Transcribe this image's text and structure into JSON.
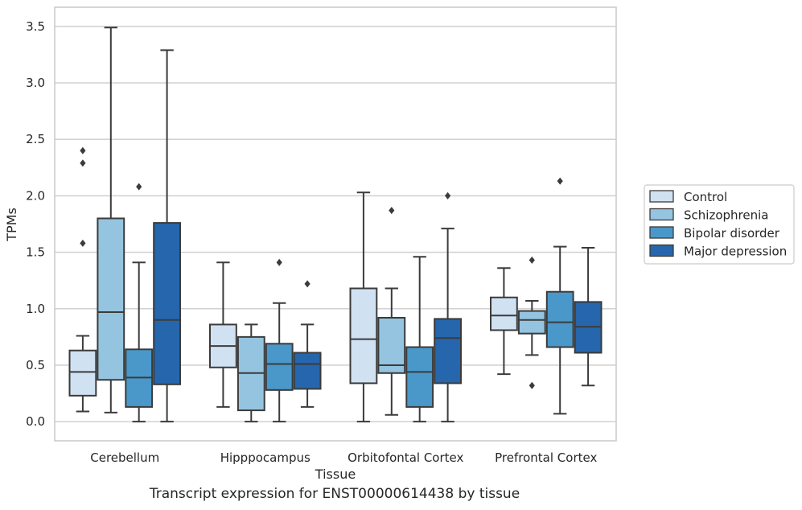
{
  "caption": "Transcript expression for ENST00000614438 by tissue",
  "chart_data": {
    "type": "boxplot",
    "xlabel": "Tissue",
    "ylabel": "TPMs",
    "ylim": [
      -0.17,
      3.67
    ],
    "yticks": [
      0.0,
      0.5,
      1.0,
      1.5,
      2.0,
      2.5,
      3.0,
      3.5
    ],
    "ytick_labels": [
      "0.0",
      "0.5",
      "1.0",
      "1.5",
      "2.0",
      "2.5",
      "3.0",
      "3.5"
    ],
    "grid": "horizontal",
    "legend_position": "right",
    "categories": [
      "Cerebellum",
      "Hipppocampus",
      "Orbitofontal Cortex",
      "Prefrontal Cortex"
    ],
    "series": [
      {
        "name": "Control",
        "color": "#d0e1f2",
        "boxes": [
          {
            "whisker_low": 0.09,
            "q1": 0.23,
            "median": 0.44,
            "q3": 0.63,
            "whisker_high": 0.76,
            "outliers": [
              1.58,
              2.29,
              2.4
            ]
          },
          {
            "whisker_low": 0.13,
            "q1": 0.48,
            "median": 0.67,
            "q3": 0.86,
            "whisker_high": 1.41,
            "outliers": []
          },
          {
            "whisker_low": 0.0,
            "q1": 0.34,
            "median": 0.73,
            "q3": 1.18,
            "whisker_high": 2.03,
            "outliers": []
          },
          {
            "whisker_low": 0.42,
            "q1": 0.81,
            "median": 0.94,
            "q3": 1.1,
            "whisker_high": 1.36,
            "outliers": []
          }
        ]
      },
      {
        "name": "Schizophrenia",
        "color": "#94c4df",
        "boxes": [
          {
            "whisker_low": 0.08,
            "q1": 0.37,
            "median": 0.97,
            "q3": 1.8,
            "whisker_high": 3.49,
            "outliers": []
          },
          {
            "whisker_low": 0.0,
            "q1": 0.1,
            "median": 0.43,
            "q3": 0.75,
            "whisker_high": 0.86,
            "outliers": []
          },
          {
            "whisker_low": 0.06,
            "q1": 0.43,
            "median": 0.5,
            "q3": 0.92,
            "whisker_high": 1.18,
            "outliers": [
              1.87
            ]
          },
          {
            "whisker_low": 0.59,
            "q1": 0.78,
            "median": 0.9,
            "q3": 0.98,
            "whisker_high": 1.07,
            "outliers": [
              0.32,
              1.43
            ]
          }
        ]
      },
      {
        "name": "Bipolar disorder",
        "color": "#4a98c9",
        "boxes": [
          {
            "whisker_low": 0.0,
            "q1": 0.13,
            "median": 0.39,
            "q3": 0.64,
            "whisker_high": 1.41,
            "outliers": [
              2.08
            ]
          },
          {
            "whisker_low": 0.0,
            "q1": 0.28,
            "median": 0.51,
            "q3": 0.69,
            "whisker_high": 1.05,
            "outliers": [
              1.41
            ]
          },
          {
            "whisker_low": 0.0,
            "q1": 0.13,
            "median": 0.44,
            "q3": 0.66,
            "whisker_high": 1.46,
            "outliers": []
          },
          {
            "whisker_low": 0.07,
            "q1": 0.66,
            "median": 0.88,
            "q3": 1.15,
            "whisker_high": 1.55,
            "outliers": [
              2.13
            ]
          }
        ]
      },
      {
        "name": "Major depression",
        "color": "#2666ad",
        "boxes": [
          {
            "whisker_low": 0.0,
            "q1": 0.33,
            "median": 0.9,
            "q3": 1.76,
            "whisker_high": 3.29,
            "outliers": []
          },
          {
            "whisker_low": 0.13,
            "q1": 0.29,
            "median": 0.51,
            "q3": 0.61,
            "whisker_high": 0.86,
            "outliers": [
              1.22
            ]
          },
          {
            "whisker_low": 0.0,
            "q1": 0.34,
            "median": 0.74,
            "q3": 0.91,
            "whisker_high": 1.71,
            "outliers": [
              2.0
            ]
          },
          {
            "whisker_low": 0.32,
            "q1": 0.61,
            "median": 0.84,
            "q3": 1.06,
            "whisker_high": 1.54,
            "outliers": []
          }
        ]
      }
    ]
  }
}
